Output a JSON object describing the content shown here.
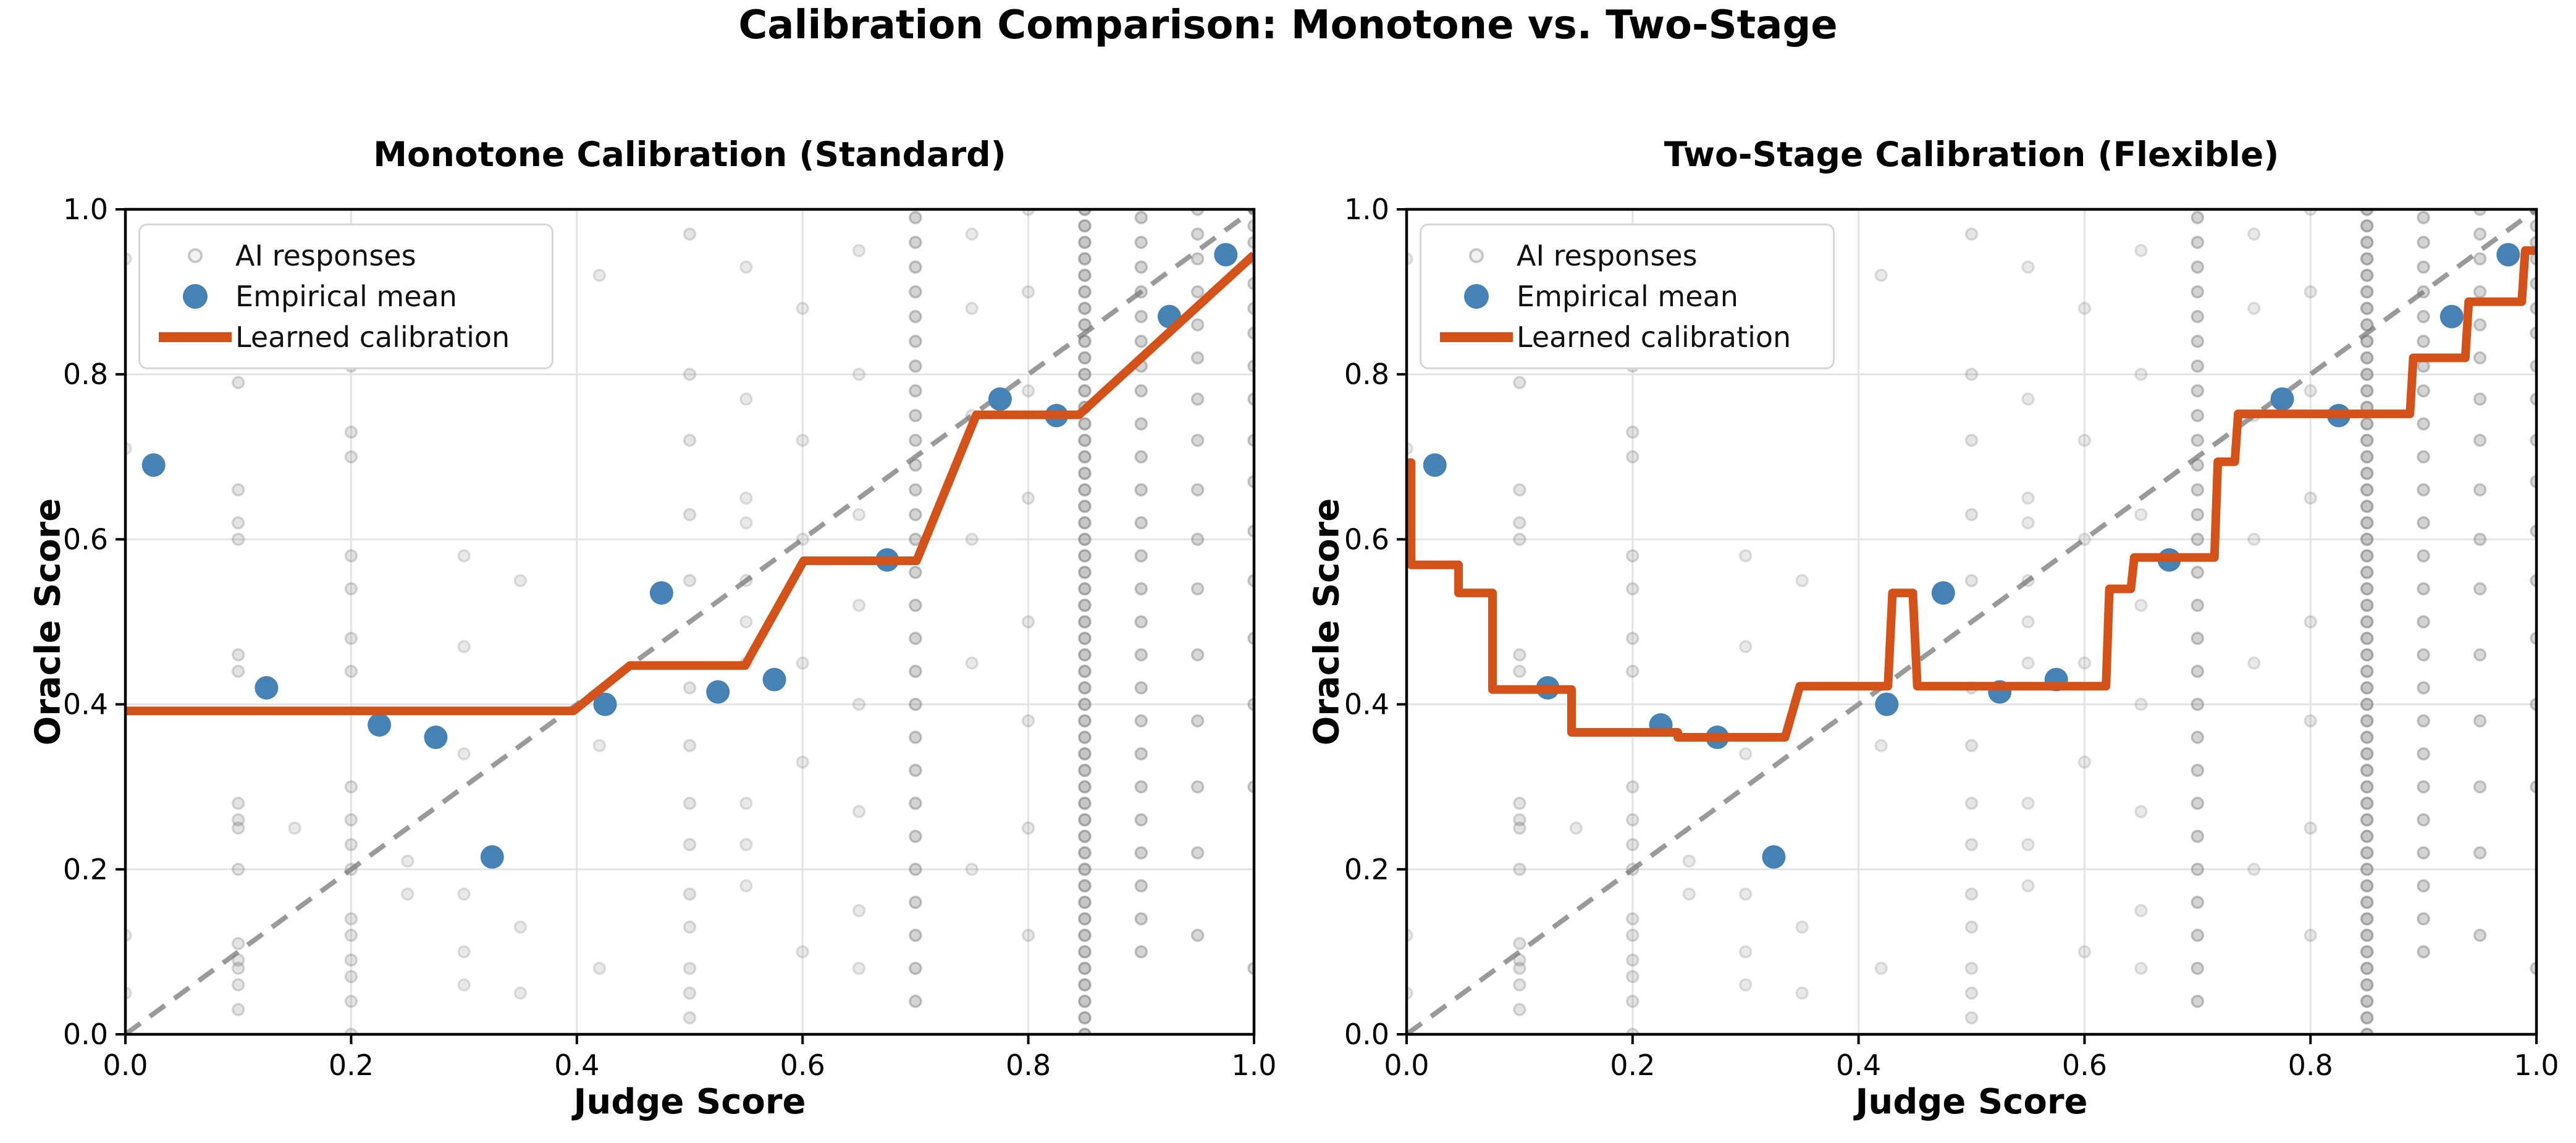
{
  "figure_title": "Calibration Comparison: Monotone vs. Two-Stage",
  "legend": {
    "items": [
      {
        "label": "AI responses",
        "marker": "small-gray-dot-icon"
      },
      {
        "label": "Empirical mean",
        "marker": "blue-dot-icon"
      },
      {
        "label": "Learned calibration",
        "marker": "orange-line-icon"
      }
    ]
  },
  "colors": {
    "calibration": "#d2521a",
    "empirical_mean": "#4682b4",
    "ai_responses": "#787878",
    "diagonal": "#9a9a9a",
    "grid": "#e4e4e4",
    "spine": "#000000",
    "text": "#000000"
  },
  "chart_data": {
    "type": "scatter",
    "title": "Calibration Comparison: Monotone vs. Two-Stage",
    "axes": {
      "xlabel": "Judge Score",
      "ylabel": "Oracle Score",
      "xlim": [
        0.0,
        1.0
      ],
      "ylim": [
        0.0,
        1.0
      ],
      "xtick_values": [
        0.0,
        0.2,
        0.4,
        0.6,
        0.8,
        1.0
      ],
      "xtick_labels": [
        "0.0",
        "0.2",
        "0.4",
        "0.6",
        "0.8",
        "1.0"
      ],
      "ytick_values": [
        0.0,
        0.2,
        0.4,
        0.6,
        0.8,
        1.0
      ],
      "ytick_labels": [
        "0.0",
        "0.2",
        "0.4",
        "0.6",
        "0.8",
        "1.0"
      ],
      "grid_values": [
        0.2,
        0.4,
        0.6,
        0.8
      ],
      "grid": true,
      "legend_position": "upper left"
    },
    "panels": [
      {
        "title": "Monotone Calibration (Standard)",
        "calibration_style": "isotonic-monotone",
        "calibration": [
          [
            0.0,
            0.392
          ],
          [
            0.397,
            0.392
          ],
          [
            0.447,
            0.447
          ],
          [
            0.549,
            0.447
          ],
          [
            0.601,
            0.574
          ],
          [
            0.701,
            0.574
          ],
          [
            0.754,
            0.751
          ],
          [
            0.845,
            0.751
          ],
          [
            1.0,
            0.945
          ]
        ]
      },
      {
        "title": "Two-Stage Calibration (Flexible)",
        "calibration_style": "two-stage-step",
        "calibration": [
          [
            0.0,
            0.693
          ],
          [
            0.004,
            0.693
          ],
          [
            0.004,
            0.569
          ],
          [
            0.046,
            0.569
          ],
          [
            0.046,
            0.535
          ],
          [
            0.076,
            0.535
          ],
          [
            0.076,
            0.418
          ],
          [
            0.146,
            0.418
          ],
          [
            0.146,
            0.366
          ],
          [
            0.24,
            0.366
          ],
          [
            0.24,
            0.36
          ],
          [
            0.335,
            0.36
          ],
          [
            0.348,
            0.422
          ],
          [
            0.426,
            0.422
          ],
          [
            0.43,
            0.535
          ],
          [
            0.448,
            0.535
          ],
          [
            0.452,
            0.422
          ],
          [
            0.619,
            0.422
          ],
          [
            0.622,
            0.54
          ],
          [
            0.641,
            0.54
          ],
          [
            0.644,
            0.578
          ],
          [
            0.715,
            0.578
          ],
          [
            0.718,
            0.694
          ],
          [
            0.733,
            0.694
          ],
          [
            0.736,
            0.752
          ],
          [
            0.888,
            0.752
          ],
          [
            0.891,
            0.82
          ],
          [
            0.937,
            0.82
          ],
          [
            0.94,
            0.888
          ],
          [
            0.987,
            0.888
          ],
          [
            0.99,
            0.95
          ],
          [
            1.0,
            0.95
          ]
        ]
      }
    ],
    "shared": {
      "diagonal": [
        [
          0.0,
          0.0
        ],
        [
          1.0,
          1.0
        ]
      ],
      "empirical_mean": [
        [
          0.025,
          0.69
        ],
        [
          0.125,
          0.42
        ],
        [
          0.225,
          0.375
        ],
        [
          0.275,
          0.36
        ],
        [
          0.325,
          0.215
        ],
        [
          0.425,
          0.4
        ],
        [
          0.475,
          0.535
        ],
        [
          0.525,
          0.415
        ],
        [
          0.575,
          0.43
        ],
        [
          0.675,
          0.575
        ],
        [
          0.775,
          0.77
        ],
        [
          0.825,
          0.75
        ],
        [
          0.925,
          0.87
        ],
        [
          0.975,
          0.945
        ]
      ],
      "ai_responses_columns": [
        {
          "x": 0.0,
          "a": 1.0,
          "ys": [
            0.05,
            0.12,
            0.71,
            0.94
          ]
        },
        {
          "x": 0.05,
          "a": 1.0,
          "ys": [
            0.9,
            0.93
          ]
        },
        {
          "x": 0.1,
          "a": 1.3,
          "ys": [
            0.03,
            0.06,
            0.08,
            0.09,
            0.11,
            0.2,
            0.25,
            0.26,
            0.28,
            0.44,
            0.46,
            0.6,
            0.62,
            0.66,
            0.79,
            0.91
          ]
        },
        {
          "x": 0.15,
          "a": 1.0,
          "ys": [
            0.25,
            0.88
          ]
        },
        {
          "x": 0.2,
          "a": 1.3,
          "ys": [
            0.0,
            0.04,
            0.07,
            0.09,
            0.12,
            0.14,
            0.2,
            0.23,
            0.26,
            0.3,
            0.44,
            0.48,
            0.54,
            0.58,
            0.7,
            0.73,
            0.81,
            0.85,
            0.9,
            0.97
          ]
        },
        {
          "x": 0.25,
          "a": 1.0,
          "ys": [
            0.17,
            0.21
          ]
        },
        {
          "x": 0.3,
          "a": 1.0,
          "ys": [
            0.06,
            0.1,
            0.17,
            0.34,
            0.47,
            0.58,
            0.9
          ]
        },
        {
          "x": 0.35,
          "a": 1.0,
          "ys": [
            0.05,
            0.13,
            0.55,
            0.91
          ]
        },
        {
          "x": 0.42,
          "a": 1.0,
          "ys": [
            0.08,
            0.35,
            0.92
          ]
        },
        {
          "x": 0.5,
          "a": 1.2,
          "ys": [
            0.02,
            0.05,
            0.08,
            0.13,
            0.17,
            0.23,
            0.28,
            0.35,
            0.42,
            0.55,
            0.63,
            0.72,
            0.8,
            0.97
          ]
        },
        {
          "x": 0.55,
          "a": 1.0,
          "ys": [
            0.18,
            0.23,
            0.28,
            0.45,
            0.5,
            0.55,
            0.62,
            0.65,
            0.77,
            0.93
          ]
        },
        {
          "x": 0.6,
          "a": 1.0,
          "ys": [
            0.1,
            0.33,
            0.45,
            0.6,
            0.72,
            0.88
          ]
        },
        {
          "x": 0.65,
          "a": 1.0,
          "ys": [
            0.08,
            0.15,
            0.27,
            0.4,
            0.52,
            0.63,
            0.8,
            0.95
          ]
        },
        {
          "x": 0.7,
          "a": 2.0,
          "ys": [
            0.04,
            0.08,
            0.12,
            0.16,
            0.2,
            0.24,
            0.28,
            0.32,
            0.36,
            0.4,
            0.44,
            0.48,
            0.52,
            0.56,
            0.6,
            0.63,
            0.66,
            0.69,
            0.72,
            0.75,
            0.78,
            0.81,
            0.84,
            0.87,
            0.9,
            0.93,
            0.96,
            0.99
          ]
        },
        {
          "x": 0.75,
          "a": 1.0,
          "ys": [
            0.2,
            0.45,
            0.6,
            0.75,
            0.88,
            0.97
          ]
        },
        {
          "x": 0.8,
          "a": 1.1,
          "ys": [
            0.12,
            0.25,
            0.38,
            0.5,
            0.65,
            0.78,
            0.9,
            1.0
          ]
        },
        {
          "x": 0.85,
          "a": 2.6,
          "ys": [
            0.0,
            0.02,
            0.04,
            0.06,
            0.08,
            0.1,
            0.12,
            0.14,
            0.16,
            0.18,
            0.2,
            0.22,
            0.24,
            0.26,
            0.28,
            0.3,
            0.32,
            0.34,
            0.36,
            0.38,
            0.4,
            0.42,
            0.44,
            0.46,
            0.48,
            0.5,
            0.52,
            0.54,
            0.56,
            0.58,
            0.6,
            0.62,
            0.64,
            0.66,
            0.68,
            0.7,
            0.72,
            0.74,
            0.76,
            0.78,
            0.8,
            0.82,
            0.84,
            0.86,
            0.88,
            0.9,
            0.92,
            0.94,
            0.96,
            0.98,
            1.0
          ]
        },
        {
          "x": 0.9,
          "a": 2.0,
          "ys": [
            0.1,
            0.14,
            0.18,
            0.22,
            0.26,
            0.3,
            0.34,
            0.38,
            0.42,
            0.46,
            0.5,
            0.54,
            0.58,
            0.62,
            0.66,
            0.7,
            0.74,
            0.78,
            0.81,
            0.84,
            0.87,
            0.9,
            0.93,
            0.96,
            0.99
          ]
        },
        {
          "x": 0.95,
          "a": 1.8,
          "ys": [
            0.12,
            0.22,
            0.3,
            0.38,
            0.46,
            0.54,
            0.6,
            0.66,
            0.72,
            0.77,
            0.82,
            0.86,
            0.9,
            0.94,
            0.97,
            1.0
          ]
        },
        {
          "x": 1.0,
          "a": 1.8,
          "ys": [
            0.08,
            0.3,
            0.4,
            0.48,
            0.55,
            0.61,
            0.67,
            0.72,
            0.77,
            0.81,
            0.85,
            0.88,
            0.91,
            0.94,
            0.96,
            0.98,
            1.0
          ]
        }
      ]
    }
  }
}
